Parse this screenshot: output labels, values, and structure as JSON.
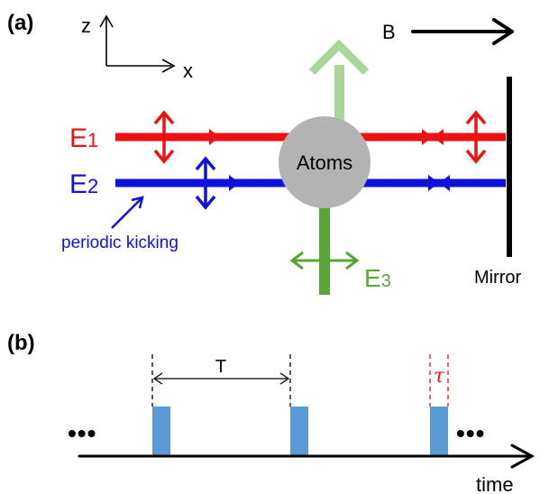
{
  "panel_a": {
    "label": "(a)",
    "axis_z": "z",
    "axis_x": "x",
    "field_label": "B",
    "beam1_label": "E",
    "beam1_sub": "1",
    "beam2_label": "E",
    "beam2_sub": "2",
    "beam3_label": "E",
    "beam3_sub": "3",
    "atoms_label": "Atoms",
    "kicking_label": "periodic kicking",
    "mirror_label": "Mirror",
    "colors": {
      "beam1": "#ee1111",
      "beam2": "#1111dd",
      "beam3": "#5aa53a",
      "beam3_light": "#a9d79a",
      "atoms": "#b3b3b3",
      "mirror": "#000000"
    }
  },
  "panel_b": {
    "label": "(b)",
    "period_label": "T",
    "pulse_width_label": "τ",
    "time_label": "time",
    "ellipsis_left": "•••",
    "ellipsis_right": "•••",
    "colors": {
      "pulse": "#5b9bd5",
      "tau_marker": "#ee1111"
    }
  }
}
